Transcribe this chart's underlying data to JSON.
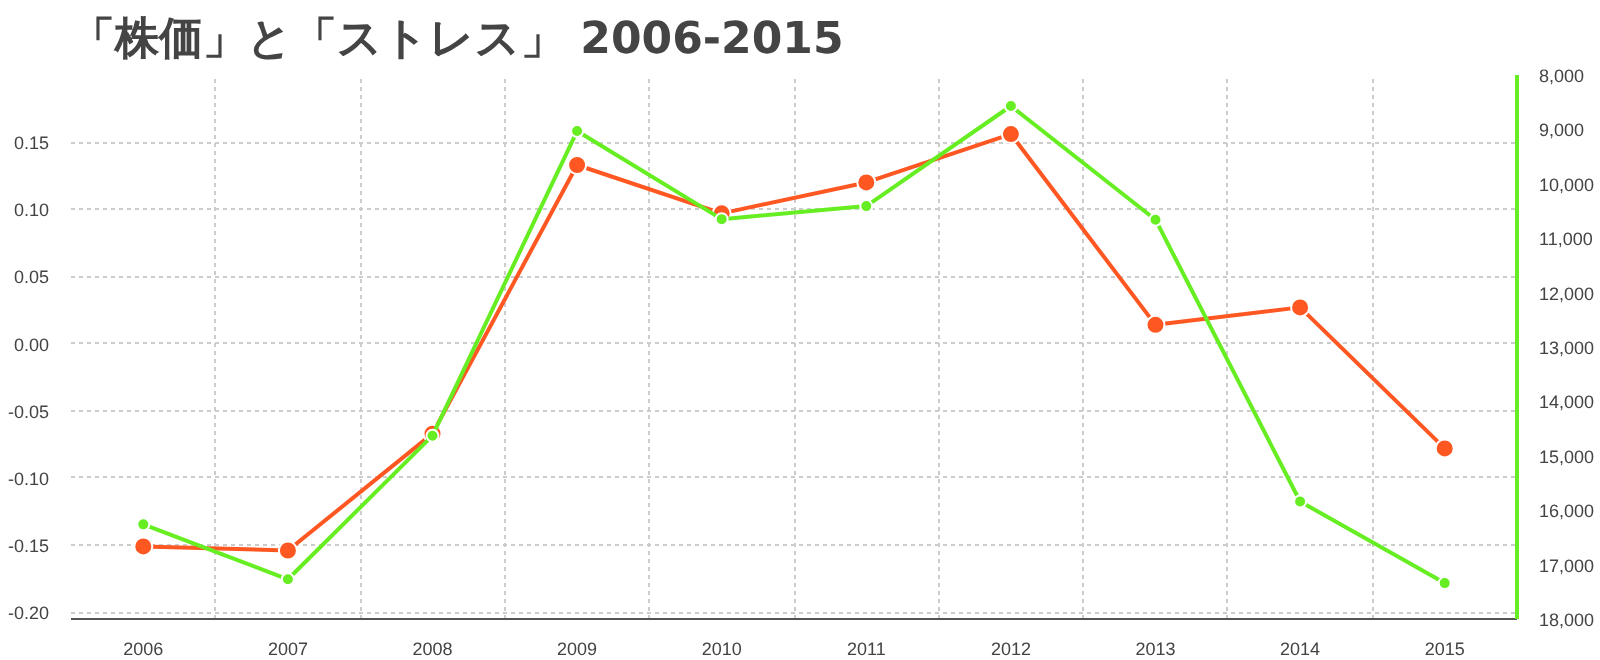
{
  "chart_data": {
    "type": "line",
    "title": "「株価」と「ストレス」 2006-2015",
    "categories": [
      "2006",
      "2007",
      "2008",
      "2009",
      "2010",
      "2011",
      "2012",
      "2013",
      "2014",
      "2015"
    ],
    "series": [
      {
        "color": "#ff5722",
        "values": [
          -0.151,
          -0.154,
          -0.067,
          0.133,
          0.097,
          0.12,
          0.156,
          0.014,
          0.027,
          -0.078
        ]
      },
      {
        "color": "#66ee22",
        "axis": "y2",
        "values": [
          16260,
          17270,
          14630,
          9030,
          10650,
          10410,
          8570,
          10660,
          15840,
          17340
        ]
      }
    ],
    "ylim": [
      -0.205,
      0.2
    ],
    "yticks": [
      {
        "value": -0.2,
        "label": "-0.20"
      },
      {
        "value": -0.15,
        "label": "-0.15"
      },
      {
        "value": -0.1,
        "label": "-0.10"
      },
      {
        "value": -0.05,
        "label": "-0.05"
      },
      {
        "value": 0,
        "label": "0.00"
      },
      {
        "value": 0.05,
        "label": "0.05"
      },
      {
        "value": 0.1,
        "label": "0.10"
      },
      {
        "value": 0.15,
        "label": "0.15"
      }
    ],
    "y2lim": [
      18000,
      8000
    ],
    "y2ticks": [
      {
        "value": 8000,
        "label": "8,000"
      },
      {
        "value": 9000,
        "label": "9,000"
      },
      {
        "value": 10000,
        "label": "10,000"
      },
      {
        "value": 11000,
        "label": "11,000"
      },
      {
        "value": 12000,
        "label": "12,000"
      },
      {
        "value": 13000,
        "label": "13,000"
      },
      {
        "value": 14000,
        "label": "14,000"
      },
      {
        "value": 15000,
        "label": "15,000"
      },
      {
        "value": 16000,
        "label": "16,000"
      },
      {
        "value": 17000,
        "label": "17,000"
      },
      {
        "value": 18000,
        "label": "18,000"
      }
    ],
    "grid": true,
    "marker": "circle",
    "line_style": "solid"
  }
}
